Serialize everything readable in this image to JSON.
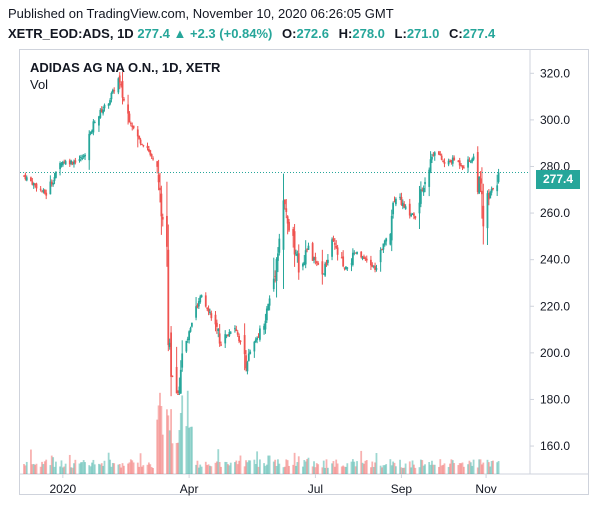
{
  "header": {
    "published": "Published on TradingView.com, November 10, 2020 06:26:05 GMT",
    "symbol": "XETR_EOD:ADS, 1D",
    "last": "277.4",
    "change_arrow": "▲",
    "change": "+2.3 (+0.84%)",
    "o_label": "O:",
    "o_value": "272.6",
    "h_label": "H:",
    "h_value": "278.0",
    "l_label": "L:",
    "l_value": "271.0",
    "c_label": "C:",
    "c_value": "277.4"
  },
  "legend": {
    "title": "ADIDAS AG NA O.N., 1D, XETR",
    "volume": "Vol"
  },
  "last_price_label": "277.4",
  "colors": {
    "up": "#26a69a",
    "down": "#ef5350",
    "axis": "#131722",
    "frame": "#cfd3dc"
  },
  "chart_data": {
    "type": "candlestick",
    "title": "ADIDAS AG NA O.N., 1D, XETR",
    "y_axis": {
      "min": 148,
      "max": 330,
      "ticks": [
        "160.0",
        "180.0",
        "200.0",
        "220.0",
        "240.0",
        "260.0",
        "280.0",
        "300.0",
        "320.0"
      ],
      "position": "right"
    },
    "x_axis": {
      "ticks": [
        "2020",
        "Apr",
        "Jul",
        "Sep",
        "Nov"
      ],
      "tick_dates": [
        "2020-01-01",
        "2020-04-01",
        "2020-07-01",
        "2020-09-01",
        "2020-11-01"
      ],
      "range": [
        "2019-12-04",
        "2020-11-24"
      ]
    },
    "last_price": 277.4,
    "grid": false,
    "anchor_closes": [
      [
        "2019-12-04",
        276
      ],
      [
        "2019-12-12",
        272
      ],
      [
        "2019-12-20",
        268
      ],
      [
        "2019-12-31",
        282
      ],
      [
        "2020-01-08",
        282
      ],
      [
        "2020-01-16",
        284
      ],
      [
        "2020-01-24",
        300
      ],
      [
        "2020-02-03",
        308
      ],
      [
        "2020-02-10",
        317
      ],
      [
        "2020-02-17",
        302
      ],
      [
        "2020-02-24",
        292
      ],
      [
        "2020-03-02",
        288
      ],
      [
        "2020-03-09",
        278
      ],
      [
        "2020-03-12",
        262
      ],
      [
        "2020-03-16",
        235
      ],
      [
        "2020-03-18",
        205
      ],
      [
        "2020-03-19",
        194
      ],
      [
        "2020-03-23",
        178
      ],
      [
        "2020-03-27",
        198
      ],
      [
        "2020-04-03",
        212
      ],
      [
        "2020-04-10",
        225
      ],
      [
        "2020-04-17",
        216
      ],
      [
        "2020-04-24",
        204
      ],
      [
        "2020-05-04",
        212
      ],
      [
        "2020-05-12",
        196
      ],
      [
        "2020-05-19",
        205
      ],
      [
        "2020-05-26",
        215
      ],
      [
        "2020-06-02",
        235
      ],
      [
        "2020-06-08",
        265
      ],
      [
        "2020-06-12",
        253
      ],
      [
        "2020-06-19",
        238
      ],
      [
        "2020-06-26",
        245
      ],
      [
        "2020-07-06",
        233
      ],
      [
        "2020-07-14",
        247
      ],
      [
        "2020-07-22",
        235
      ],
      [
        "2020-07-30",
        243
      ],
      [
        "2020-08-07",
        239
      ],
      [
        "2020-08-14",
        236
      ],
      [
        "2020-08-21",
        250
      ],
      [
        "2020-08-28",
        269
      ],
      [
        "2020-09-04",
        262
      ],
      [
        "2020-09-11",
        258
      ],
      [
        "2020-09-18",
        275
      ],
      [
        "2020-09-25",
        288
      ],
      [
        "2020-10-02",
        281
      ],
      [
        "2020-10-09",
        283
      ],
      [
        "2020-10-16",
        280
      ],
      [
        "2020-10-23",
        284
      ],
      [
        "2020-10-28",
        270
      ],
      [
        "2020-10-30",
        256
      ],
      [
        "2020-11-04",
        268
      ],
      [
        "2020-11-10",
        277.4
      ]
    ],
    "volume_baseline": "low, with a spike in mid/late March 2020"
  }
}
